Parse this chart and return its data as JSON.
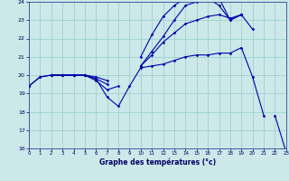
{
  "xlabel": "Graphe des températures (°c)",
  "bg_color": "#cce8e8",
  "line_color": "#0000aa",
  "xlim": [
    0,
    23
  ],
  "ylim": [
    16,
    24
  ],
  "xticks": [
    0,
    1,
    2,
    3,
    4,
    5,
    6,
    7,
    8,
    9,
    10,
    11,
    12,
    13,
    14,
    15,
    16,
    17,
    18,
    19,
    20,
    21,
    22,
    23
  ],
  "yticks": [
    16,
    17,
    18,
    19,
    20,
    21,
    22,
    23,
    24
  ],
  "lines": [
    [
      19.4,
      19.9,
      20.0,
      20.0,
      20.0,
      20.0,
      19.8,
      18.8,
      18.3,
      19.4,
      20.4,
      20.5,
      20.6,
      20.8,
      21.0,
      21.1,
      21.1,
      21.2,
      21.2,
      21.5,
      19.9,
      17.8,
      null,
      null
    ],
    [
      19.4,
      19.9,
      20.0,
      20.0,
      20.0,
      20.0,
      19.7,
      19.2,
      19.4,
      null,
      21.0,
      22.2,
      23.2,
      23.8,
      24.2,
      24.3,
      24.3,
      24.2,
      23.0,
      23.3,
      null,
      null,
      null,
      null
    ],
    [
      19.4,
      null,
      20.0,
      20.0,
      20.0,
      20.0,
      19.9,
      19.7,
      null,
      null,
      20.5,
      21.1,
      21.8,
      22.3,
      22.8,
      23.0,
      23.2,
      23.3,
      23.1,
      23.3,
      null,
      null,
      null,
      null
    ],
    [
      19.4,
      null,
      20.0,
      20.0,
      20.0,
      20.0,
      19.8,
      19.5,
      null,
      null,
      20.5,
      21.3,
      22.1,
      23.0,
      23.8,
      24.0,
      24.2,
      23.8,
      23.0,
      23.3,
      22.5,
      null,
      17.8,
      15.8
    ]
  ]
}
